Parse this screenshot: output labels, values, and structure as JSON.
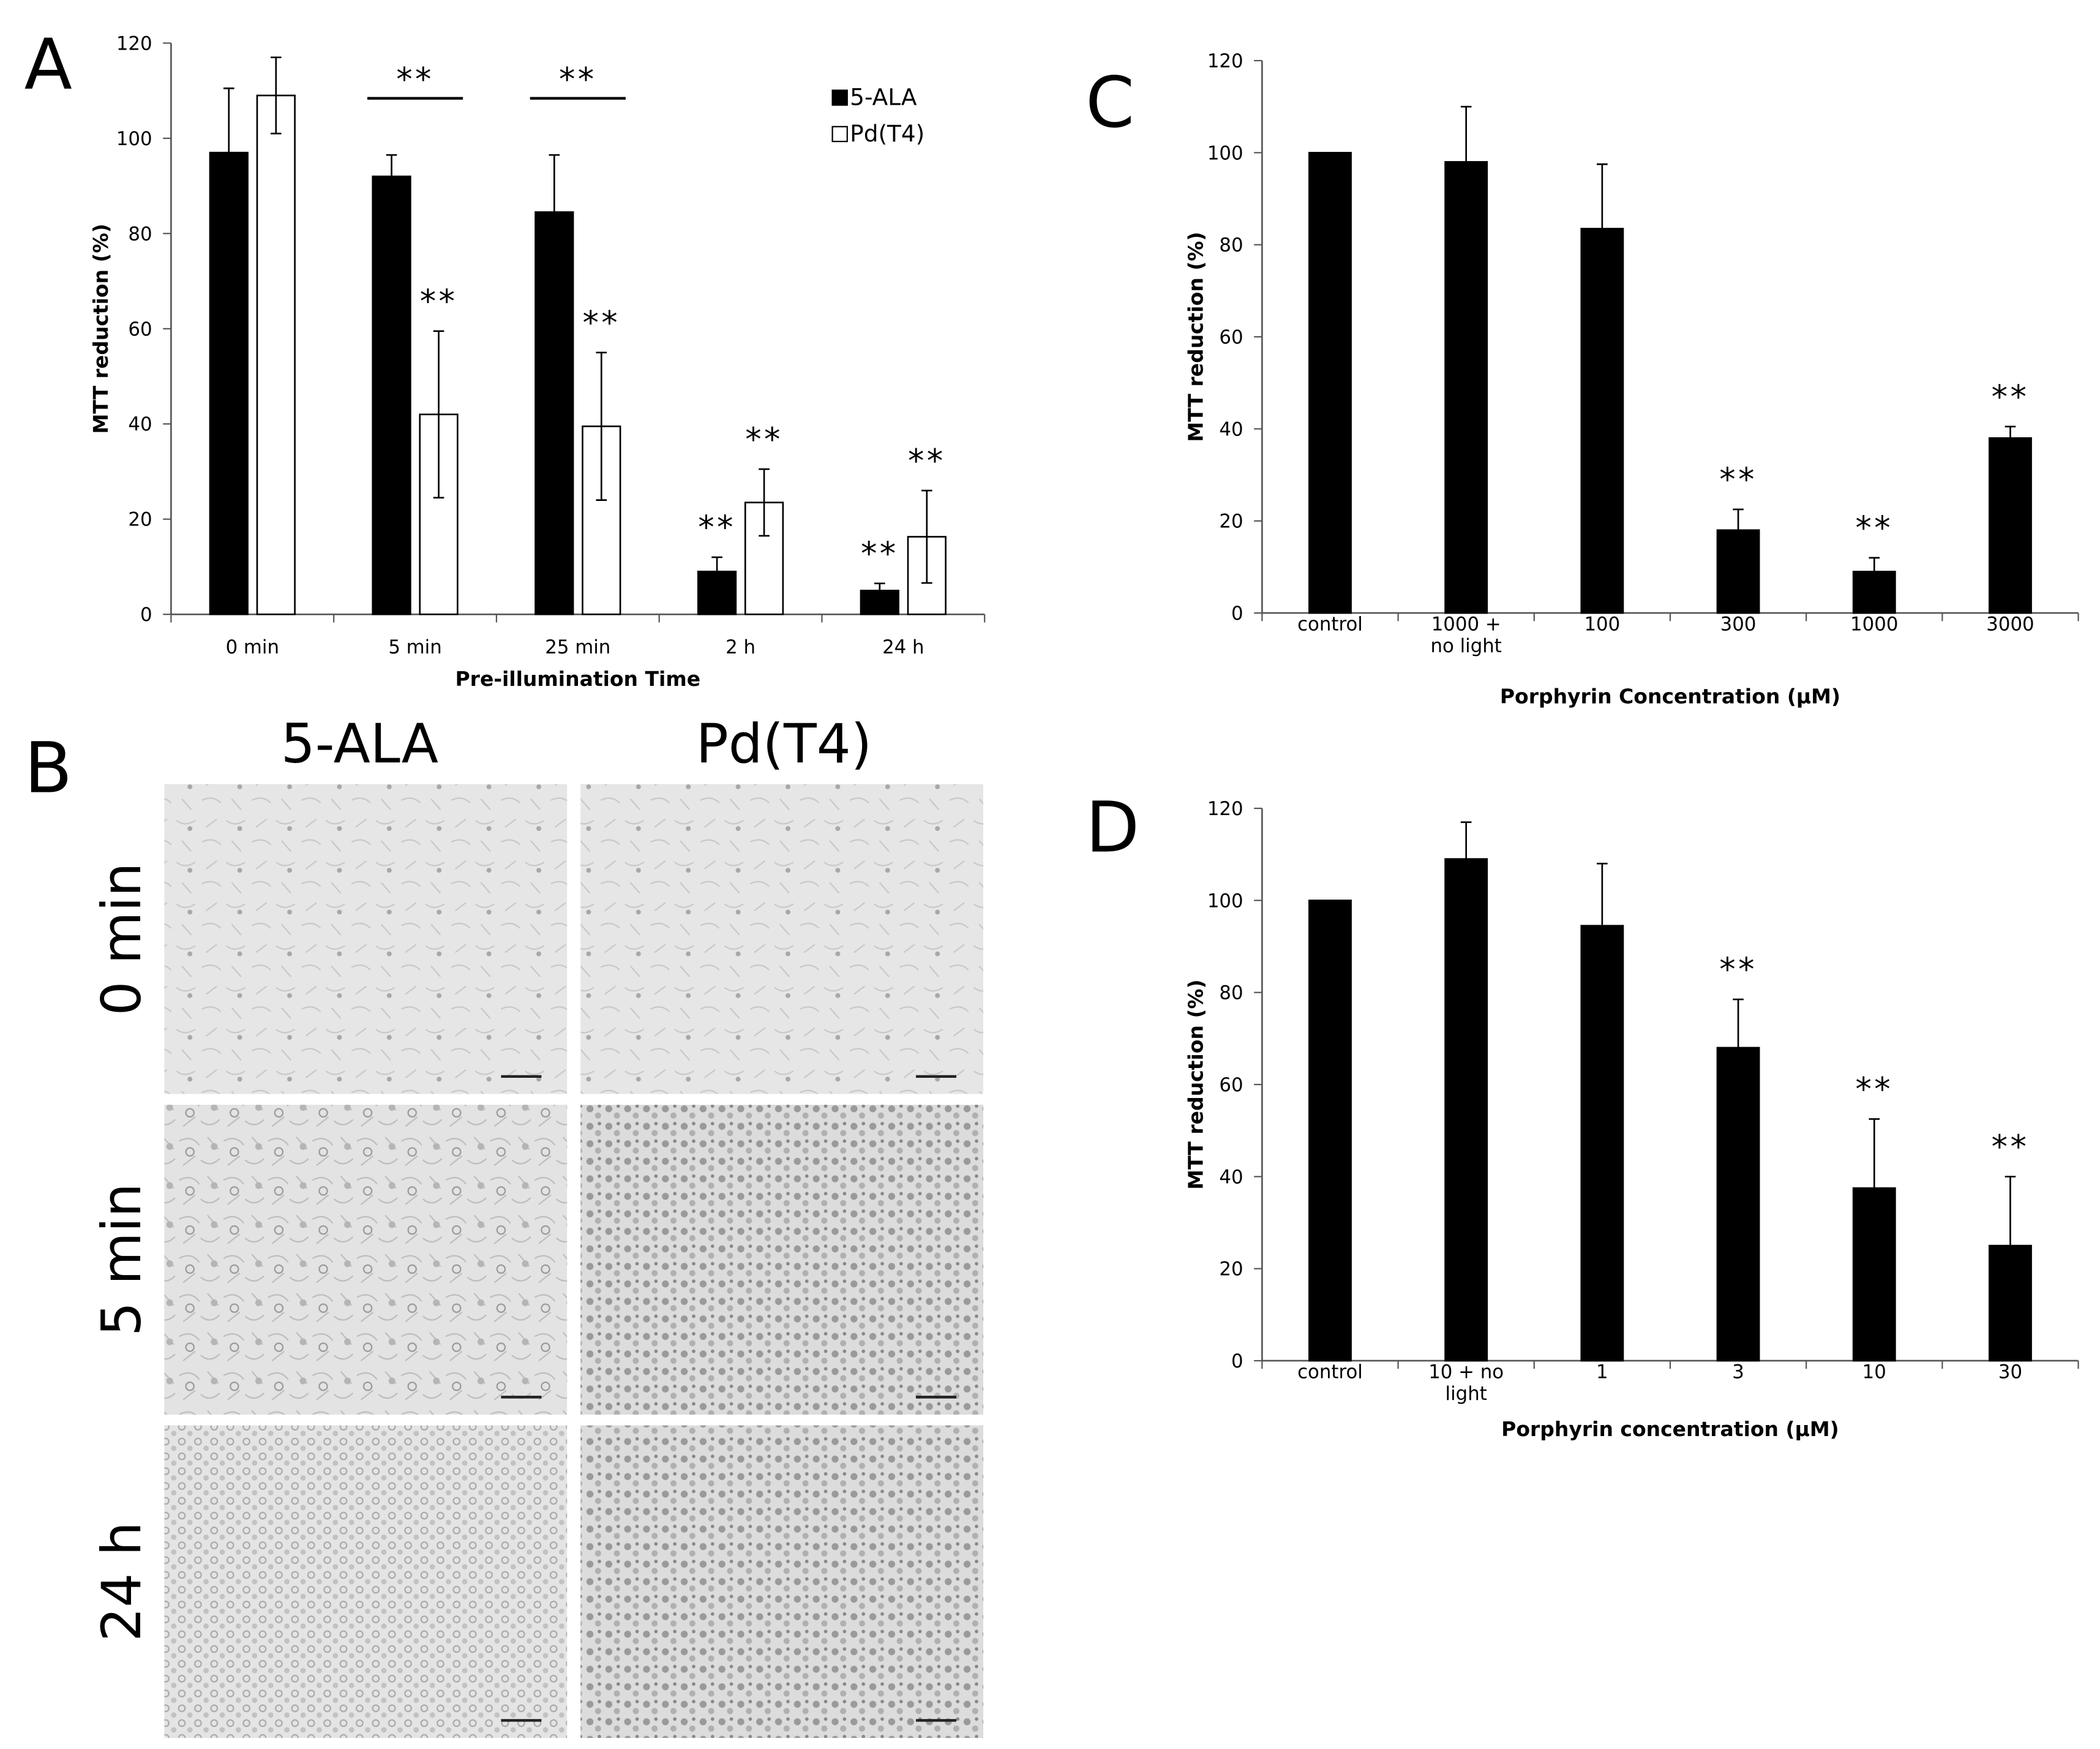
{
  "chart_data": [
    {
      "type": "bar",
      "panel_label": "A",
      "xlabel": "Pre-illumination Time",
      "ylabel": "MTT reduction (%)",
      "categories": [
        "0 min",
        "5 min",
        "25 min",
        "2 h",
        "24 h"
      ],
      "series": [
        {
          "name": "5-ALA",
          "color": "#000000",
          "values": [
            97,
            92,
            84.5,
            9,
            5
          ],
          "errors": [
            13.5,
            4.5,
            12,
            3,
            1.5
          ],
          "significance": [
            null,
            null,
            null,
            "**",
            "**"
          ]
        },
        {
          "name": "Pd(T4)",
          "color": "#ffffff",
          "values": [
            109,
            42,
            39.5,
            23.5,
            16.3
          ],
          "errors": [
            8,
            17.5,
            15.5,
            7,
            9.7
          ],
          "significance": [
            null,
            "**",
            "**",
            "**",
            "**"
          ]
        }
      ],
      "bracket_labels": [
        null,
        "**",
        "**",
        null,
        null
      ],
      "ylim": [
        0,
        120
      ],
      "yticks": [
        0,
        20,
        40,
        60,
        80,
        100,
        120
      ],
      "grid": false,
      "legend": "top-right"
    },
    {
      "type": "bar",
      "panel_label": "C",
      "xlabel": "Porphyrin Concentration (µM)",
      "ylabel": "MTT reduction (%)",
      "categories": [
        "control",
        "1000 + no light",
        "100",
        "300",
        "1000",
        "3000"
      ],
      "values": [
        100,
        98,
        83.5,
        18,
        9,
        38
      ],
      "errors": [
        0,
        12,
        14,
        4.5,
        3,
        2.5
      ],
      "significance": [
        null,
        null,
        null,
        "**",
        "**",
        "**"
      ],
      "color": "#000000",
      "ylim": [
        0,
        120
      ],
      "yticks": [
        0,
        20,
        40,
        60,
        80,
        100,
        120
      ],
      "grid": false
    },
    {
      "type": "bar",
      "panel_label": "D",
      "xlabel": "Porphyrin concentration (µM)",
      "ylabel": "MTT reduction (%)",
      "categories": [
        "control",
        "10 + no light",
        "1",
        "3",
        "10",
        "30"
      ],
      "values": [
        100,
        109,
        94.5,
        68,
        37.5,
        25
      ],
      "errors": [
        0,
        8,
        13.5,
        10.5,
        15,
        15
      ],
      "significance": [
        null,
        null,
        null,
        "**",
        "**",
        "**"
      ],
      "color": "#000000",
      "ylim": [
        0,
        120
      ],
      "yticks": [
        0,
        20,
        40,
        60,
        80,
        100,
        120
      ],
      "grid": false
    }
  ],
  "panel_b": {
    "label": "B",
    "columns": [
      "5-ALA",
      "Pd(T4)"
    ],
    "rows": [
      "0 min",
      "5 min",
      "24 h"
    ]
  }
}
